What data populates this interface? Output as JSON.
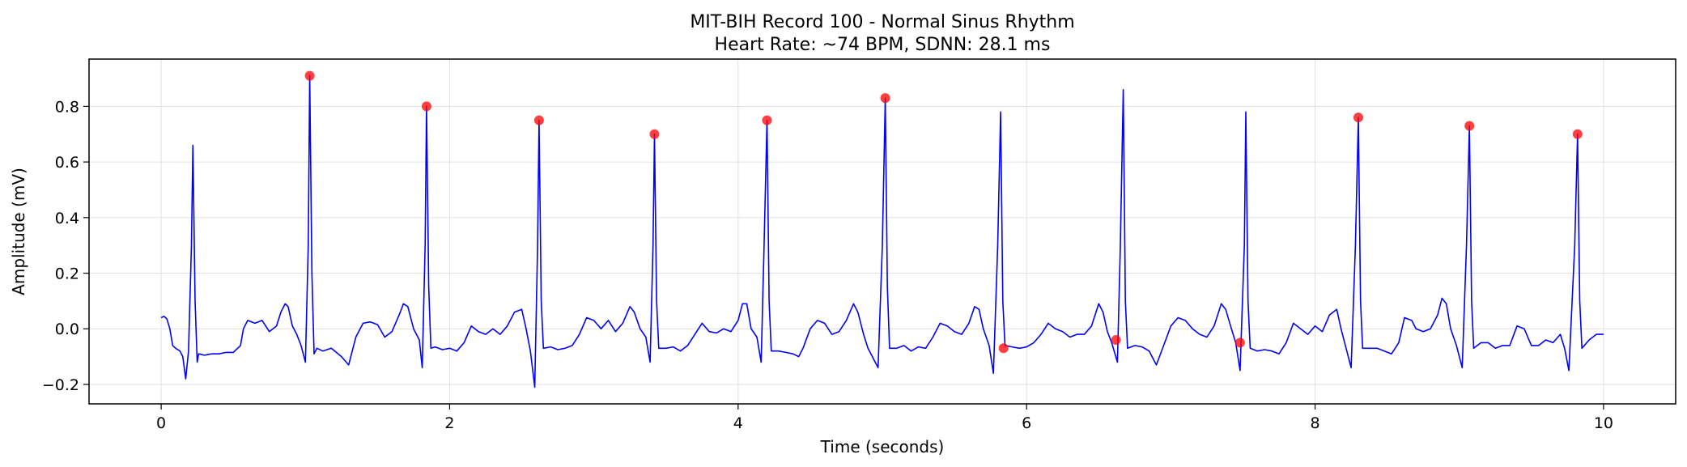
{
  "chart_data": {
    "type": "line",
    "title": "MIT-BIH Record 100 - Normal Sinus Rhythm",
    "subtitle": "Heart Rate: ~74 BPM, SDNN: 28.1 ms",
    "xlabel": "Time (seconds)",
    "ylabel": "Amplitude (mV)",
    "xlim": [
      -0.5,
      10.5
    ],
    "ylim": [
      -0.27,
      0.97
    ],
    "x_ticks": [
      0,
      2,
      4,
      6,
      8,
      10
    ],
    "x_tick_labels": [
      "0",
      "2",
      "4",
      "6",
      "8",
      "10"
    ],
    "y_ticks": [
      -0.2,
      0.0,
      0.2,
      0.4,
      0.6,
      0.8
    ],
    "y_tick_labels": [
      "−0.2",
      "0.0",
      "0.2",
      "0.4",
      "0.6",
      "0.8"
    ],
    "grid": true,
    "series": [
      {
        "kind": "line",
        "color": "#0000ff",
        "points": [
          [
            0.0,
            0.04
          ],
          [
            0.02,
            0.045
          ],
          [
            0.04,
            0.035
          ],
          [
            0.06,
            0.0
          ],
          [
            0.08,
            -0.06
          ],
          [
            0.1,
            -0.07
          ],
          [
            0.13,
            -0.08
          ],
          [
            0.15,
            -0.1
          ],
          [
            0.17,
            -0.18
          ],
          [
            0.19,
            -0.08
          ],
          [
            0.21,
            0.3
          ],
          [
            0.22,
            0.66
          ],
          [
            0.235,
            0.1
          ],
          [
            0.25,
            -0.12
          ],
          [
            0.26,
            -0.09
          ],
          [
            0.3,
            -0.095
          ],
          [
            0.35,
            -0.09
          ],
          [
            0.4,
            -0.09
          ],
          [
            0.45,
            -0.085
          ],
          [
            0.5,
            -0.085
          ],
          [
            0.55,
            -0.06
          ],
          [
            0.57,
            0.0
          ],
          [
            0.6,
            0.03
          ],
          [
            0.65,
            0.02
          ],
          [
            0.7,
            0.03
          ],
          [
            0.75,
            -0.01
          ],
          [
            0.8,
            0.01
          ],
          [
            0.83,
            0.06
          ],
          [
            0.86,
            0.09
          ],
          [
            0.88,
            0.08
          ],
          [
            0.91,
            0.01
          ],
          [
            0.94,
            -0.02
          ],
          [
            0.97,
            -0.06
          ],
          [
            1.0,
            -0.12
          ],
          [
            1.02,
            0.3
          ],
          [
            1.03,
            0.91
          ],
          [
            1.045,
            0.2
          ],
          [
            1.06,
            -0.09
          ],
          [
            1.08,
            -0.07
          ],
          [
            1.12,
            -0.08
          ],
          [
            1.18,
            -0.07
          ],
          [
            1.25,
            -0.1
          ],
          [
            1.3,
            -0.13
          ],
          [
            1.35,
            -0.03
          ],
          [
            1.4,
            0.02
          ],
          [
            1.45,
            0.025
          ],
          [
            1.5,
            0.015
          ],
          [
            1.55,
            -0.03
          ],
          [
            1.6,
            -0.01
          ],
          [
            1.65,
            0.05
          ],
          [
            1.68,
            0.09
          ],
          [
            1.71,
            0.08
          ],
          [
            1.75,
            0.0
          ],
          [
            1.79,
            -0.04
          ],
          [
            1.81,
            -0.14
          ],
          [
            1.83,
            0.3
          ],
          [
            1.84,
            0.8
          ],
          [
            1.855,
            0.15
          ],
          [
            1.87,
            -0.07
          ],
          [
            1.9,
            -0.065
          ],
          [
            1.95,
            -0.075
          ],
          [
            2.0,
            -0.07
          ],
          [
            2.05,
            -0.08
          ],
          [
            2.1,
            -0.05
          ],
          [
            2.15,
            0.01
          ],
          [
            2.2,
            -0.01
          ],
          [
            2.25,
            -0.02
          ],
          [
            2.3,
            0.0
          ],
          [
            2.35,
            -0.02
          ],
          [
            2.4,
            0.01
          ],
          [
            2.45,
            0.06
          ],
          [
            2.5,
            0.07
          ],
          [
            2.53,
            0.0
          ],
          [
            2.56,
            -0.08
          ],
          [
            2.59,
            -0.21
          ],
          [
            2.61,
            0.3
          ],
          [
            2.62,
            0.75
          ],
          [
            2.635,
            0.1
          ],
          [
            2.65,
            -0.07
          ],
          [
            2.7,
            -0.065
          ],
          [
            2.75,
            -0.075
          ],
          [
            2.8,
            -0.07
          ],
          [
            2.85,
            -0.06
          ],
          [
            2.9,
            -0.02
          ],
          [
            2.95,
            0.04
          ],
          [
            3.0,
            0.03
          ],
          [
            3.05,
            0.0
          ],
          [
            3.1,
            0.03
          ],
          [
            3.15,
            -0.01
          ],
          [
            3.2,
            0.02
          ],
          [
            3.25,
            0.08
          ],
          [
            3.28,
            0.06
          ],
          [
            3.32,
            0.0
          ],
          [
            3.36,
            -0.03
          ],
          [
            3.39,
            -0.12
          ],
          [
            3.41,
            0.3
          ],
          [
            3.42,
            0.7
          ],
          [
            3.435,
            0.1
          ],
          [
            3.45,
            -0.07
          ],
          [
            3.5,
            -0.07
          ],
          [
            3.55,
            -0.065
          ],
          [
            3.6,
            -0.08
          ],
          [
            3.65,
            -0.06
          ],
          [
            3.7,
            -0.02
          ],
          [
            3.75,
            0.02
          ],
          [
            3.8,
            -0.01
          ],
          [
            3.85,
            -0.015
          ],
          [
            3.9,
            0.0
          ],
          [
            3.95,
            -0.01
          ],
          [
            4.0,
            0.03
          ],
          [
            4.03,
            0.09
          ],
          [
            4.06,
            0.09
          ],
          [
            4.09,
            0.0
          ],
          [
            4.13,
            -0.03
          ],
          [
            4.16,
            -0.12
          ],
          [
            4.18,
            0.3
          ],
          [
            4.2,
            0.75
          ],
          [
            4.215,
            0.1
          ],
          [
            4.23,
            -0.08
          ],
          [
            4.28,
            -0.08
          ],
          [
            4.33,
            -0.085
          ],
          [
            4.38,
            -0.09
          ],
          [
            4.42,
            -0.1
          ],
          [
            4.45,
            -0.07
          ],
          [
            4.5,
            0.0
          ],
          [
            4.55,
            0.03
          ],
          [
            4.6,
            0.02
          ],
          [
            4.65,
            -0.02
          ],
          [
            4.7,
            -0.01
          ],
          [
            4.75,
            0.03
          ],
          [
            4.8,
            0.09
          ],
          [
            4.83,
            0.06
          ],
          [
            4.87,
            -0.02
          ],
          [
            4.9,
            -0.07
          ],
          [
            4.97,
            -0.14
          ],
          [
            5.0,
            0.3
          ],
          [
            5.02,
            0.83
          ],
          [
            5.035,
            0.15
          ],
          [
            5.05,
            -0.07
          ],
          [
            5.1,
            -0.07
          ],
          [
            5.15,
            -0.06
          ],
          [
            5.2,
            -0.08
          ],
          [
            5.25,
            -0.065
          ],
          [
            5.3,
            -0.07
          ],
          [
            5.35,
            -0.03
          ],
          [
            5.4,
            0.02
          ],
          [
            5.45,
            0.01
          ],
          [
            5.5,
            -0.01
          ],
          [
            5.55,
            -0.02
          ],
          [
            5.6,
            0.02
          ],
          [
            5.64,
            0.08
          ],
          [
            5.67,
            0.07
          ],
          [
            5.7,
            0.0
          ],
          [
            5.74,
            -0.06
          ],
          [
            5.77,
            -0.16
          ],
          [
            5.8,
            0.3
          ],
          [
            5.82,
            0.78
          ],
          [
            5.835,
            0.1
          ],
          [
            5.85,
            -0.06
          ],
          [
            5.9,
            -0.065
          ],
          [
            5.95,
            -0.07
          ],
          [
            6.0,
            -0.065
          ],
          [
            6.05,
            -0.05
          ],
          [
            6.1,
            -0.02
          ],
          [
            6.15,
            0.02
          ],
          [
            6.2,
            0.0
          ],
          [
            6.25,
            -0.01
          ],
          [
            6.3,
            -0.03
          ],
          [
            6.35,
            -0.02
          ],
          [
            6.4,
            -0.02
          ],
          [
            6.45,
            0.01
          ],
          [
            6.5,
            0.09
          ],
          [
            6.53,
            0.06
          ],
          [
            6.56,
            -0.01
          ],
          [
            6.59,
            -0.05
          ],
          [
            6.63,
            -0.12
          ],
          [
            6.65,
            0.3
          ],
          [
            6.67,
            0.86
          ],
          [
            6.685,
            0.1
          ],
          [
            6.7,
            -0.07
          ],
          [
            6.75,
            -0.06
          ],
          [
            6.8,
            -0.065
          ],
          [
            6.85,
            -0.08
          ],
          [
            6.9,
            -0.13
          ],
          [
            6.95,
            -0.06
          ],
          [
            7.0,
            0.01
          ],
          [
            7.05,
            0.04
          ],
          [
            7.1,
            0.03
          ],
          [
            7.15,
            0.0
          ],
          [
            7.2,
            -0.02
          ],
          [
            7.25,
            -0.03
          ],
          [
            7.3,
            0.01
          ],
          [
            7.35,
            0.09
          ],
          [
            7.38,
            0.07
          ],
          [
            7.42,
            0.0
          ],
          [
            7.45,
            -0.05
          ],
          [
            7.48,
            -0.15
          ],
          [
            7.51,
            0.3
          ],
          [
            7.52,
            0.78
          ],
          [
            7.535,
            0.1
          ],
          [
            7.55,
            -0.07
          ],
          [
            7.6,
            -0.08
          ],
          [
            7.65,
            -0.075
          ],
          [
            7.7,
            -0.08
          ],
          [
            7.75,
            -0.09
          ],
          [
            7.8,
            -0.05
          ],
          [
            7.85,
            0.02
          ],
          [
            7.9,
            0.0
          ],
          [
            7.95,
            -0.02
          ],
          [
            8.0,
            0.01
          ],
          [
            8.05,
            -0.01
          ],
          [
            8.1,
            0.05
          ],
          [
            8.15,
            0.07
          ],
          [
            8.18,
            0.0
          ],
          [
            8.21,
            -0.06
          ],
          [
            8.25,
            -0.14
          ],
          [
            8.28,
            0.3
          ],
          [
            8.3,
            0.76
          ],
          [
            8.315,
            0.1
          ],
          [
            8.33,
            -0.07
          ],
          [
            8.38,
            -0.07
          ],
          [
            8.43,
            -0.07
          ],
          [
            8.48,
            -0.08
          ],
          [
            8.53,
            -0.09
          ],
          [
            8.58,
            -0.05
          ],
          [
            8.62,
            0.04
          ],
          [
            8.67,
            0.03
          ],
          [
            8.7,
            0.0
          ],
          [
            8.75,
            -0.01
          ],
          [
            8.8,
            0.0
          ],
          [
            8.85,
            0.05
          ],
          [
            8.88,
            0.11
          ],
          [
            8.91,
            0.09
          ],
          [
            8.94,
            0.0
          ],
          [
            8.98,
            -0.06
          ],
          [
            9.02,
            -0.14
          ],
          [
            9.05,
            0.3
          ],
          [
            9.07,
            0.73
          ],
          [
            9.085,
            0.1
          ],
          [
            9.1,
            -0.07
          ],
          [
            9.15,
            -0.05
          ],
          [
            9.2,
            -0.05
          ],
          [
            9.25,
            -0.07
          ],
          [
            9.3,
            -0.06
          ],
          [
            9.35,
            -0.06
          ],
          [
            9.4,
            0.01
          ],
          [
            9.45,
            0.0
          ],
          [
            9.5,
            -0.06
          ],
          [
            9.55,
            -0.06
          ],
          [
            9.6,
            -0.04
          ],
          [
            9.65,
            -0.05
          ],
          [
            9.7,
            -0.02
          ],
          [
            9.73,
            -0.07
          ],
          [
            9.76,
            -0.15
          ],
          [
            9.8,
            0.3
          ],
          [
            9.82,
            0.7
          ],
          [
            9.835,
            0.1
          ],
          [
            9.85,
            -0.07
          ],
          [
            9.9,
            -0.04
          ],
          [
            9.95,
            -0.02
          ],
          [
            10.0,
            -0.02
          ]
        ]
      },
      {
        "kind": "scatter",
        "color": "#ff0000",
        "points": [
          [
            1.03,
            0.91
          ],
          [
            1.84,
            0.8
          ],
          [
            2.62,
            0.75
          ],
          [
            3.42,
            0.7
          ],
          [
            4.2,
            0.75
          ],
          [
            5.02,
            0.83
          ],
          [
            5.84,
            -0.07
          ],
          [
            6.62,
            -0.04
          ],
          [
            7.48,
            -0.05
          ],
          [
            8.3,
            0.76
          ],
          [
            9.07,
            0.73
          ],
          [
            9.82,
            0.7
          ]
        ]
      }
    ]
  }
}
